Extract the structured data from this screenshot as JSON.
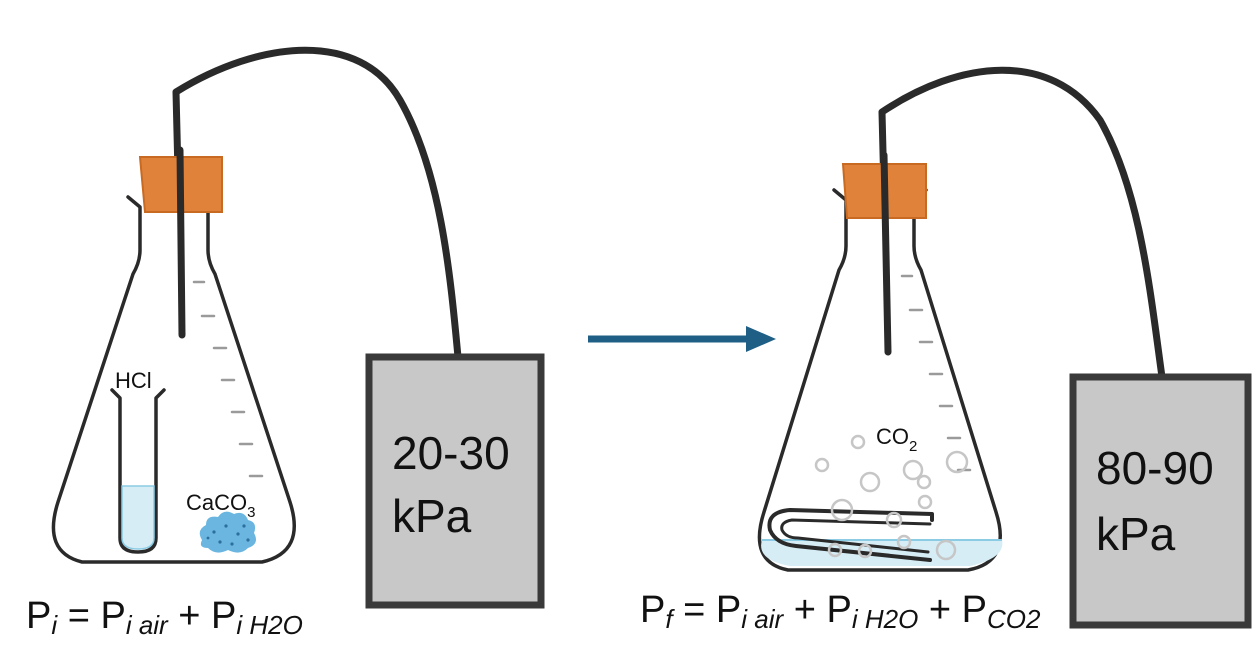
{
  "colors": {
    "stopper": "#e0823a",
    "stopper_edge": "#c96a22",
    "gauge_fill": "#c8c8c8",
    "gauge_border": "#3a3a3a",
    "arrow": "#1f5f86",
    "liquid": "#d6edf6",
    "liquid_line": "#8ccbe4",
    "powder": "#6ab6e0",
    "glass": "#2a2a2a"
  },
  "left_setup": {
    "test_tube_label": "HCl",
    "solid_label_base": "CaCO",
    "solid_label_sub": "3",
    "gauge_reading_line1": "20-30",
    "gauge_reading_line2": "kPa",
    "equation": {
      "lhs": "P",
      "lhs_sub": "i",
      "equals": " = ",
      "term1": "P",
      "term1_sub": "i air",
      "plus1": " + ",
      "term2": "P",
      "term2_sub": "i H2O"
    }
  },
  "transition_arrow": {
    "icon": "right-arrow-icon"
  },
  "right_setup": {
    "gas_label_base": "CO",
    "gas_label_sub": "2",
    "gauge_reading_line1": "80-90",
    "gauge_reading_line2": "kPa",
    "equation": {
      "lhs": "P",
      "lhs_sub": "f",
      "equals": " = ",
      "term1": "P",
      "term1_sub": "i air",
      "plus1": " + ",
      "term2": "P",
      "term2_sub": "i H2O",
      "plus2": " + ",
      "term3": "P",
      "term3_sub": "CO2"
    }
  }
}
